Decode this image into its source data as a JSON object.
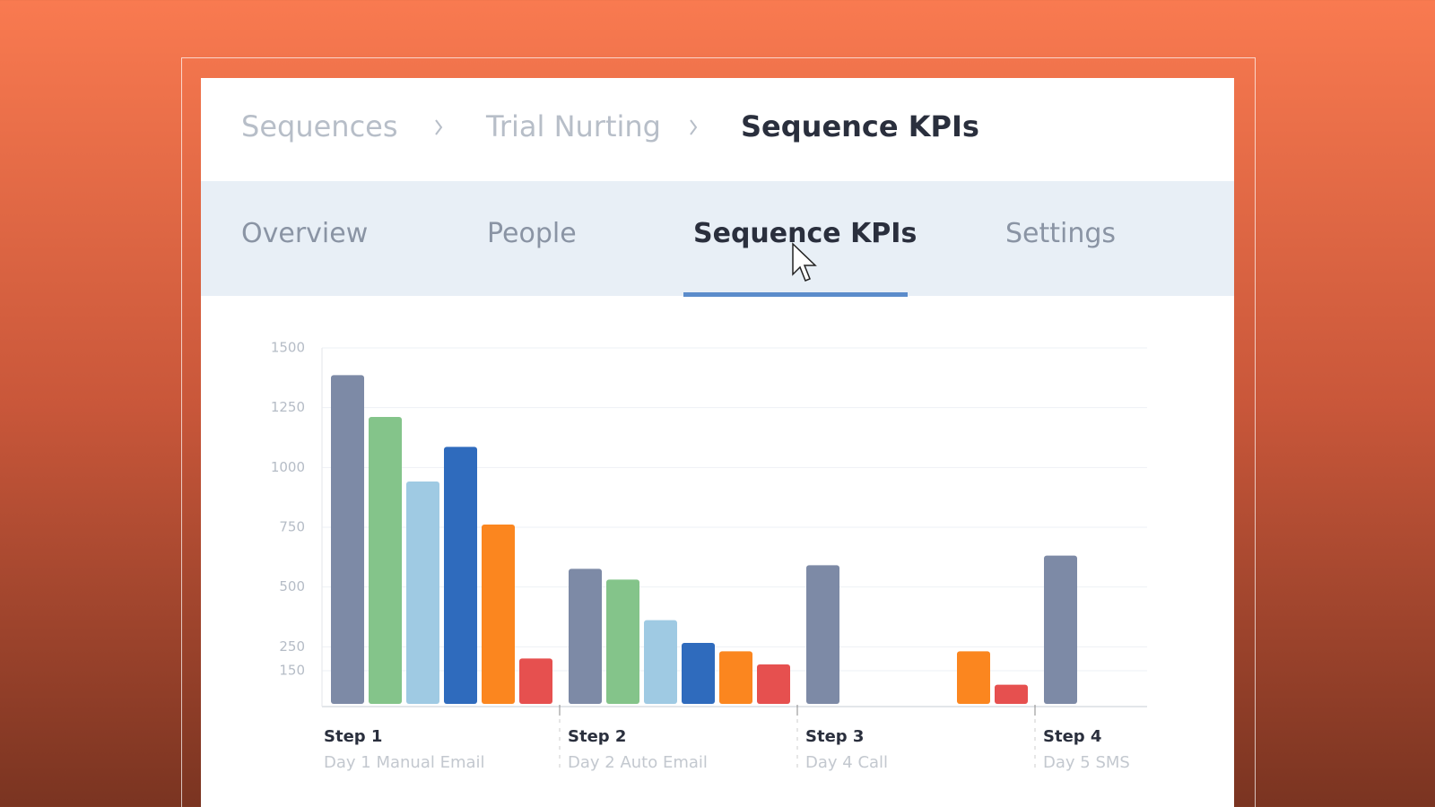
{
  "breadcrumb": [
    "Sequences",
    "Trial Nurting",
    "Sequence KPIs"
  ],
  "tabs": [
    "Overview",
    "People",
    "Sequence KPIs",
    "Settings"
  ],
  "chart_data": {
    "type": "bar",
    "categories": [
      "Step 1",
      "Step 2",
      "Step 3",
      "Step 4"
    ],
    "category_subtitles": [
      "Day 1 Manual Email",
      "Day 2 Auto Email",
      "Day 4 Call",
      "Day 5 SMS"
    ],
    "series": [
      {
        "color": "#7d8aa6",
        "values": [
          1375,
          565,
          580,
          620
        ]
      },
      {
        "color": "#84c48a",
        "values": [
          1200,
          520,
          null,
          null
        ]
      },
      {
        "color": "#9fcae3",
        "values": [
          930,
          350,
          null,
          null
        ]
      },
      {
        "color": "#2f6bbd",
        "values": [
          1075,
          255,
          null,
          null
        ]
      },
      {
        "color": "#fb861f",
        "values": [
          750,
          220,
          220,
          null
        ]
      },
      {
        "color": "#e6504f",
        "values": [
          190,
          165,
          80,
          null
        ]
      }
    ],
    "ylim": [
      0,
      1500
    ],
    "yticks": [
      150,
      250,
      500,
      750,
      1000,
      1250,
      1500
    ],
    "grid": true
  }
}
